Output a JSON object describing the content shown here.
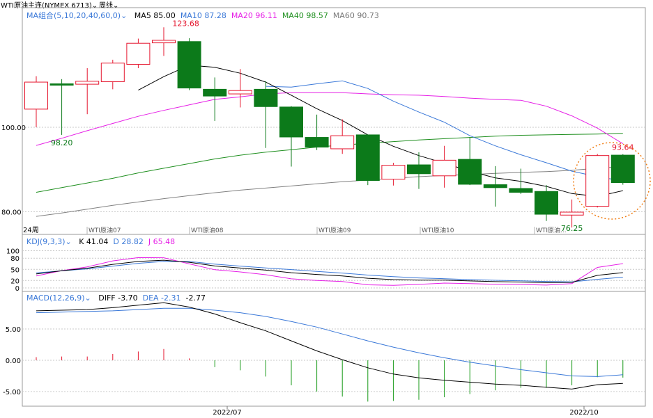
{
  "toolbar": {
    "instrument": "WTI原油主连(NYMEX 6713)",
    "instrument_chevron": "⌄",
    "period": "周线",
    "period_chevron": "⌄"
  },
  "price_panel": {
    "ma_group_label": "MA组合(5,10,20,40,60,0)",
    "ma_group_chevron": "⌄",
    "ma_values": [
      {
        "label": "MA5 85.00",
        "color": "#000000"
      },
      {
        "label": "MA10 87.28",
        "color": "#3a78d8"
      },
      {
        "label": "MA20 96.11",
        "color": "#e61ee6"
      },
      {
        "label": "MA40 98.57",
        "color": "#1f8f1f"
      },
      {
        "label": "MA60 90.73",
        "color": "#777777"
      }
    ],
    "y_ticks": [
      {
        "value": 100,
        "label": "100.00"
      },
      {
        "value": 80,
        "label": "80.00"
      }
    ],
    "max_label": "123.68",
    "min_label": "76.25",
    "low_label": "98.20",
    "last_high_label": "93.64",
    "period_tag": "24周",
    "contract_labels": [
      "WTI原油07",
      "WTI原油08",
      "WTI原油09",
      "WTI原油10",
      "WTI原油..."
    ]
  },
  "kdj_panel": {
    "label": "KDJ(9,3,3)",
    "chevron": "⌄",
    "values": [
      {
        "label": "K 41.04",
        "color": "#000000"
      },
      {
        "label": "D 28.82",
        "color": "#3a78d8"
      },
      {
        "label": "J 65.48",
        "color": "#e61ee6"
      }
    ],
    "y_ticks": [
      "100",
      "80",
      "50",
      "20",
      "0"
    ]
  },
  "macd_panel": {
    "label": "MACD(12,26,9)",
    "chevron": "⌄",
    "values": [
      {
        "label": "DIFF -3.70",
        "color": "#000000"
      },
      {
        "label": "DEA -2.31",
        "color": "#3a78d8"
      },
      {
        "label": "-2.77",
        "color": "#000000"
      }
    ],
    "y_ticks": [
      "5.00",
      "0.00",
      "-5.00"
    ]
  },
  "x_axis": {
    "labels": [
      "2022/07",
      "2022/10"
    ]
  },
  "colors": {
    "up": "#e5162e",
    "down": "#0c7a1a",
    "grid": "#c8c8c8",
    "highlight_circle": "#f07f17"
  },
  "chart_data": {
    "type": "candlestick",
    "candles": [
      {
        "open": 104.3,
        "close": 110.7,
        "high": 112.1,
        "low": 100.0
      },
      {
        "open": 110.3,
        "close": 110.0,
        "high": 111.4,
        "low": 98.2
      },
      {
        "open": 110.2,
        "close": 110.9,
        "high": 114.0,
        "low": 103.1
      },
      {
        "open": 110.8,
        "close": 115.2,
        "high": 116.0,
        "low": 109.0
      },
      {
        "open": 114.9,
        "close": 119.9,
        "high": 121.0,
        "low": 114.0
      },
      {
        "open": 120.0,
        "close": 120.6,
        "high": 123.68,
        "low": 116.9
      },
      {
        "open": 120.3,
        "close": 109.3,
        "high": 121.1,
        "low": 108.8
      },
      {
        "open": 109.0,
        "close": 107.4,
        "high": 111.8,
        "low": 101.5
      },
      {
        "open": 107.9,
        "close": 108.7,
        "high": 113.8,
        "low": 104.7
      },
      {
        "open": 109.0,
        "close": 104.9,
        "high": 110.9,
        "low": 95.1
      },
      {
        "open": 104.8,
        "close": 97.7,
        "high": 105.0,
        "low": 90.7
      },
      {
        "open": 97.6,
        "close": 95.3,
        "high": 103.0,
        "low": 94.6
      },
      {
        "open": 94.9,
        "close": 98.0,
        "high": 101.9,
        "low": 93.7
      },
      {
        "open": 98.2,
        "close": 87.4,
        "high": 98.2,
        "low": 86.3
      },
      {
        "open": 87.7,
        "close": 91.0,
        "high": 91.6,
        "low": 86.2
      },
      {
        "open": 91.1,
        "close": 89.0,
        "high": 94.1,
        "low": 85.4
      },
      {
        "open": 88.5,
        "close": 92.2,
        "high": 95.6,
        "low": 85.7
      },
      {
        "open": 92.4,
        "close": 86.5,
        "high": 97.7,
        "low": 86.3
      },
      {
        "open": 86.4,
        "close": 85.7,
        "high": 90.8,
        "low": 81.2
      },
      {
        "open": 85.5,
        "close": 84.6,
        "high": 90.2,
        "low": 84.2
      },
      {
        "open": 84.8,
        "close": 79.4,
        "high": 86.3,
        "low": 77.8
      },
      {
        "open": 79.2,
        "close": 79.9,
        "high": 82.9,
        "low": 76.25
      },
      {
        "open": 81.3,
        "close": 93.3,
        "high": 93.7,
        "low": 81.0
      },
      {
        "open": 93.4,
        "close": 86.9,
        "high": 93.64,
        "low": 86.4
      }
    ],
    "ma": {
      "MA5": [
        null,
        null,
        null,
        null,
        108.8,
        112.0,
        114.7,
        114.2,
        112.8,
        110.7,
        107.6,
        104.4,
        101.6,
        98.2,
        95.5,
        93.3,
        91.5,
        89.6,
        88.0,
        87.2,
        86.0,
        84.3,
        83.6,
        85.0
      ],
      "MA10": [
        null,
        null,
        null,
        null,
        null,
        null,
        null,
        null,
        null,
        109.7,
        109.5,
        110.3,
        111.0,
        109.2,
        106.2,
        103.6,
        101.2,
        98.0,
        95.6,
        93.5,
        91.6,
        89.6,
        88.3,
        87.28
      ],
      "MA20": [
        95.7,
        97.4,
        99.2,
        100.9,
        102.6,
        104.0,
        105.3,
        106.6,
        107.2,
        107.9,
        108.2,
        108.2,
        108.2,
        107.9,
        107.7,
        107.6,
        107.3,
        106.9,
        106.6,
        106.4,
        105.0,
        102.7,
        99.8,
        96.11
      ],
      "MA40": [
        84.6,
        85.7,
        86.8,
        87.9,
        89.2,
        90.3,
        91.4,
        92.5,
        93.4,
        94.1,
        94.7,
        95.3,
        95.8,
        96.2,
        96.6,
        97.0,
        97.3,
        97.6,
        97.9,
        98.1,
        98.2,
        98.3,
        98.4,
        98.57
      ],
      "MA60": [
        78.9,
        79.7,
        80.6,
        81.5,
        82.3,
        83.1,
        83.8,
        84.5,
        85.1,
        85.6,
        86.1,
        86.6,
        87.1,
        87.5,
        87.9,
        88.3,
        88.6,
        88.8,
        89.1,
        89.3,
        89.5,
        89.8,
        90.3,
        90.73
      ]
    },
    "kdj": {
      "K": [
        37.6,
        46.2,
        53.1,
        63.3,
        71.3,
        74.6,
        68.9,
        59.1,
        53.4,
        47.8,
        41.0,
        36.3,
        32.4,
        25.9,
        22.5,
        21.2,
        20.9,
        18.8,
        17.0,
        15.8,
        14.3,
        14.9,
        33.8,
        41.04
      ],
      "D": [
        40.3,
        46.0,
        51.3,
        58.6,
        66.2,
        71.3,
        71.0,
        64.2,
        58.6,
        53.9,
        49.3,
        44.4,
        40.0,
        34.6,
        30.2,
        27.0,
        24.8,
        22.4,
        20.6,
        19.1,
        17.6,
        16.5,
        23.1,
        28.82
      ],
      "J": [
        32.2,
        46.6,
        56.7,
        72.7,
        81.5,
        81.2,
        64.7,
        48.9,
        42.9,
        35.6,
        24.4,
        20.1,
        17.2,
        8.5,
        7.1,
        9.6,
        13.1,
        11.6,
        9.8,
        9.2,
        7.7,
        11.7,
        55.2,
        65.48
      ]
    },
    "macd": {
      "DIFF": [
        7.9,
        8.0,
        8.1,
        8.4,
        8.8,
        9.2,
        8.5,
        7.4,
        6.0,
        4.7,
        3.1,
        1.5,
        0.1,
        -1.2,
        -2.2,
        -2.8,
        -3.2,
        -3.5,
        -3.8,
        -4.0,
        -4.3,
        -4.6,
        -3.9,
        -3.7
      ],
      "DEA": [
        7.6,
        7.7,
        7.8,
        7.9,
        8.1,
        8.3,
        8.3,
        8.0,
        7.6,
        7.0,
        6.2,
        5.3,
        4.2,
        3.1,
        2.1,
        1.2,
        0.4,
        -0.3,
        -0.9,
        -1.5,
        -2.0,
        -2.5,
        -2.6,
        -2.31
      ],
      "HIST": [
        0.5,
        0.6,
        0.6,
        1.0,
        1.4,
        1.8,
        0.3,
        -1.1,
        -1.6,
        -2.6,
        -4.0,
        -5.0,
        -5.8,
        -6.6,
        -6.5,
        -6.3,
        -5.9,
        -5.4,
        -4.8,
        -4.4,
        -4.4,
        -4.0,
        -2.7,
        -2.77
      ]
    }
  }
}
